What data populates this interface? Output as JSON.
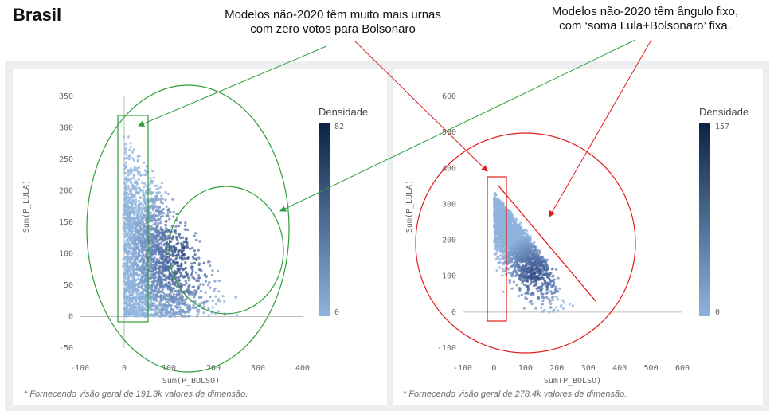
{
  "page": {
    "title": "Brasil"
  },
  "annotations": {
    "left_note": "Modelos não-2020 têm muito mais urnas\ncom zero votos para Bolsonaro",
    "right_note": "Modelos não-2020 têm ângulo fixo,\ncom ‘soma Lula+Bolsonaro’ fixa."
  },
  "colors": {
    "annotation_green": "#2e9e3a",
    "annotation_red": "#e01b1b",
    "density_low": "#8fb3dc",
    "density_high": "#0b2246",
    "panel_bg": "#eceeef"
  },
  "chart_data": [
    {
      "type": "heatmap",
      "xlabel": "Sum(P_BOLSO)",
      "ylabel": "Sum(P_LULA)",
      "xlim": [
        -100,
        400
      ],
      "ylim": [
        -50,
        350
      ],
      "x_ticks": [
        "-100",
        "0",
        "100",
        "200",
        "300",
        "400"
      ],
      "y_ticks": [
        "350",
        "300",
        "250",
        "200",
        "150",
        "100",
        "50",
        "0",
        "-50"
      ],
      "legend": {
        "title": "Densidade",
        "max": "82",
        "min": "0",
        "placement": "right"
      },
      "footnote": "* Fornecendo visão geral de 191.3k valores de dimensão.",
      "grid": false
    },
    {
      "type": "heatmap",
      "xlabel": "Sum(P_BOLSO)",
      "ylabel": "Sum(P_LULA)",
      "xlim": [
        -100,
        600
      ],
      "ylim": [
        -100,
        600
      ],
      "x_ticks": [
        "-100",
        "0",
        "100",
        "200",
        "300",
        "400",
        "500",
        "600"
      ],
      "y_ticks": [
        "600",
        "500",
        "400",
        "300",
        "200",
        "100",
        "0",
        "-100"
      ],
      "legend": {
        "title": "Densidade",
        "max": "157",
        "min": "0",
        "placement": "right"
      },
      "footnote": "* Fornecendo visão geral de 278.4k valores de dimensão.",
      "grid": false
    }
  ]
}
